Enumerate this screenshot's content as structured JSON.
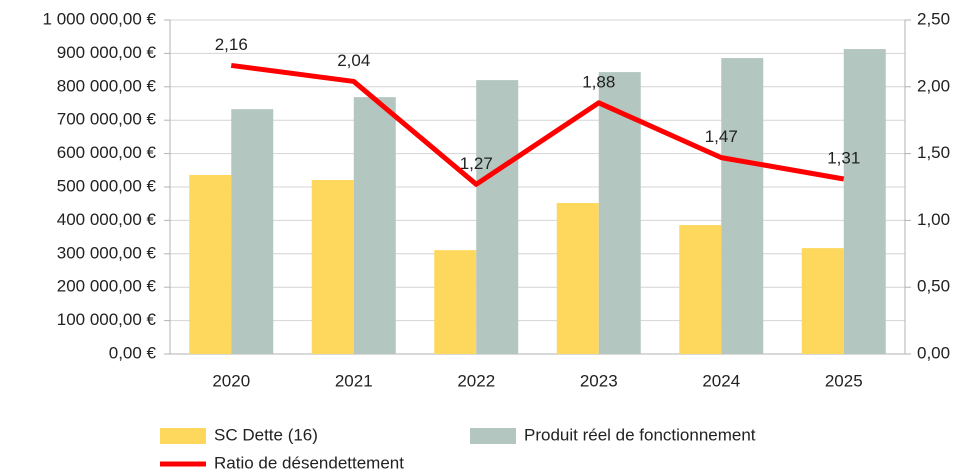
{
  "chart_data": {
    "type": "bar",
    "categories": [
      "2020",
      "2021",
      "2022",
      "2023",
      "2024",
      "2025"
    ],
    "series": [
      {
        "name": "SC Dette (16)",
        "color": "#fdd85d",
        "values": [
          536000,
          521000,
          311000,
          452000,
          386000,
          317000
        ]
      },
      {
        "name": "Produit réel de fonctionnement",
        "color": "#b3c6c0",
        "values": [
          733000,
          769000,
          820000,
          844000,
          886000,
          913000
        ]
      },
      {
        "name": "Ratio de désendettement",
        "color": "#ff0000",
        "type": "line",
        "axis": "y2",
        "values": [
          2.16,
          2.04,
          1.27,
          1.88,
          1.47,
          1.31
        ],
        "value_labels": [
          "2,16",
          "2,04",
          "1,27",
          "1,88",
          "1,47",
          "1,31"
        ]
      }
    ],
    "ylim": [
      0,
      1000000
    ],
    "yticks": [
      {
        "value": 0,
        "label": "0,00 €"
      },
      {
        "value": 100000,
        "label": "100 000,00 €"
      },
      {
        "value": 200000,
        "label": "200 000,00 €"
      },
      {
        "value": 300000,
        "label": "300 000,00 €"
      },
      {
        "value": 400000,
        "label": "400 000,00 €"
      },
      {
        "value": 500000,
        "label": "500 000,00 €"
      },
      {
        "value": 600000,
        "label": "600 000,00 €"
      },
      {
        "value": 700000,
        "label": "700 000,00 €"
      },
      {
        "value": 800000,
        "label": "800 000,00 €"
      },
      {
        "value": 900000,
        "label": "900 000,00 €"
      },
      {
        "value": 1000000,
        "label": "1 000 000,00 €"
      }
    ],
    "y2lim": [
      0,
      2.5
    ],
    "y2ticks": [
      {
        "value": 0,
        "label": "0,00"
      },
      {
        "value": 0.5,
        "label": "0,50"
      },
      {
        "value": 1,
        "label": "1,00"
      },
      {
        "value": 1.5,
        "label": "1,50"
      },
      {
        "value": 2,
        "label": "2,00"
      },
      {
        "value": 2.5,
        "label": "2,50"
      }
    ],
    "grid": true,
    "legend": "bottom"
  }
}
